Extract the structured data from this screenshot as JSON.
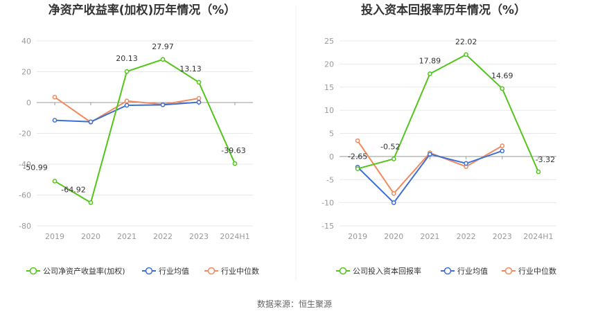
{
  "source": "数据来源：恒生聚源",
  "chart_data": [
    {
      "type": "line",
      "title": "净资产收益率(加权)历年情况（%）",
      "categories": [
        "2019",
        "2020",
        "2021",
        "2022",
        "2023",
        "2024H1"
      ],
      "ylim": [
        -80,
        40
      ],
      "yticks": [
        -80,
        -60,
        -40,
        -20,
        0,
        20,
        40
      ],
      "grid": true,
      "legend_position": "bottom",
      "series": [
        {
          "name": "公司净资产收益率(加权)",
          "color": "#52c41a",
          "values": [
            -50.99,
            -64.92,
            20.13,
            27.97,
            13.13,
            -39.63
          ],
          "labels": [
            "-50.99",
            "-64.92",
            "20.13",
            "27.97",
            "13.13",
            "-39.63"
          ]
        },
        {
          "name": "行业均值",
          "color": "#3b6fd6",
          "values": [
            -11.5,
            -12.5,
            -1.8,
            -1.5,
            0.2,
            null
          ]
        },
        {
          "name": "行业中位数",
          "color": "#f08a5d",
          "values": [
            3.5,
            -12.8,
            1.0,
            -1.2,
            2.7,
            null
          ]
        }
      ]
    },
    {
      "type": "line",
      "title": "投入资本回报率历年情况（%）",
      "categories": [
        "2019",
        "2020",
        "2021",
        "2022",
        "2023",
        "2024H1"
      ],
      "ylim": [
        -15,
        25
      ],
      "yticks": [
        -15,
        -10,
        -5,
        0,
        5,
        10,
        15,
        20,
        25
      ],
      "grid": true,
      "legend_position": "bottom",
      "series": [
        {
          "name": "公司投入资本回报率",
          "color": "#52c41a",
          "values": [
            -2.65,
            -0.52,
            17.89,
            22.02,
            14.69,
            -3.32
          ],
          "labels": [
            "-2.65",
            "-0.52",
            "17.89",
            "22.02",
            "14.69",
            "-3.32"
          ]
        },
        {
          "name": "行业均值",
          "color": "#3b6fd6",
          "values": [
            -2.3,
            -10.0,
            0.5,
            -1.5,
            1.2,
            null
          ]
        },
        {
          "name": "行业中位数",
          "color": "#f08a5d",
          "values": [
            3.4,
            -8.0,
            0.8,
            -2.2,
            2.3,
            null
          ]
        }
      ]
    }
  ]
}
